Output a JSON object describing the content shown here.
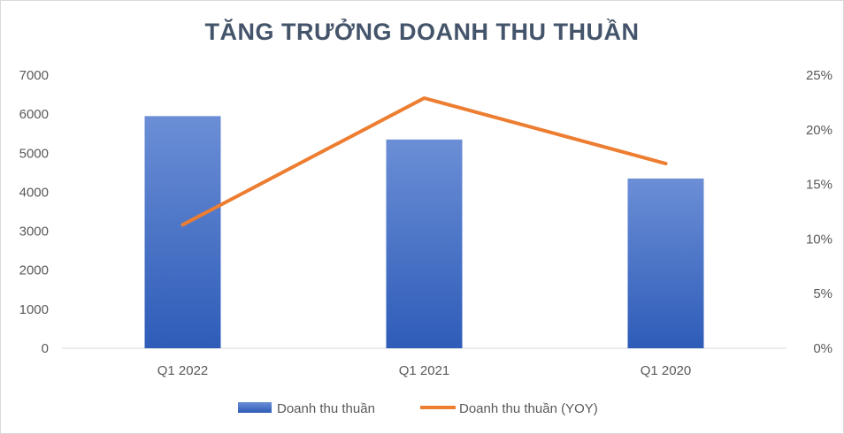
{
  "chart_data": {
    "type": "bar",
    "title": "TĂNG TRƯỞNG DOANH THU THUẦN",
    "categories": [
      "Q1 2022",
      "Q1 2021",
      "Q1 2020"
    ],
    "series": [
      {
        "name": "Doanh thu thuần",
        "type": "bar",
        "axis": "left",
        "values": [
          5950,
          5350,
          4350
        ]
      },
      {
        "name": "Doanh thu thuần (YOY)",
        "type": "line",
        "axis": "right",
        "values": [
          0.113,
          0.229,
          0.169
        ]
      }
    ],
    "ylim_left": [
      0,
      7000
    ],
    "yticks_left": [
      "0",
      "1000",
      "2000",
      "3000",
      "4000",
      "5000",
      "6000",
      "7000"
    ],
    "ylim_right": [
      0,
      0.25
    ],
    "yticks_right": [
      "0%",
      "5%",
      "10%",
      "15%",
      "20%",
      "25%"
    ],
    "grid": false,
    "legend_position": "bottom",
    "colors": {
      "bar_top": "#6b8ed6",
      "bar_bottom": "#2e5cb8",
      "line": "#ed7d31",
      "title": "#44546a",
      "text": "#595959",
      "axis": "#d9d9d9"
    }
  }
}
